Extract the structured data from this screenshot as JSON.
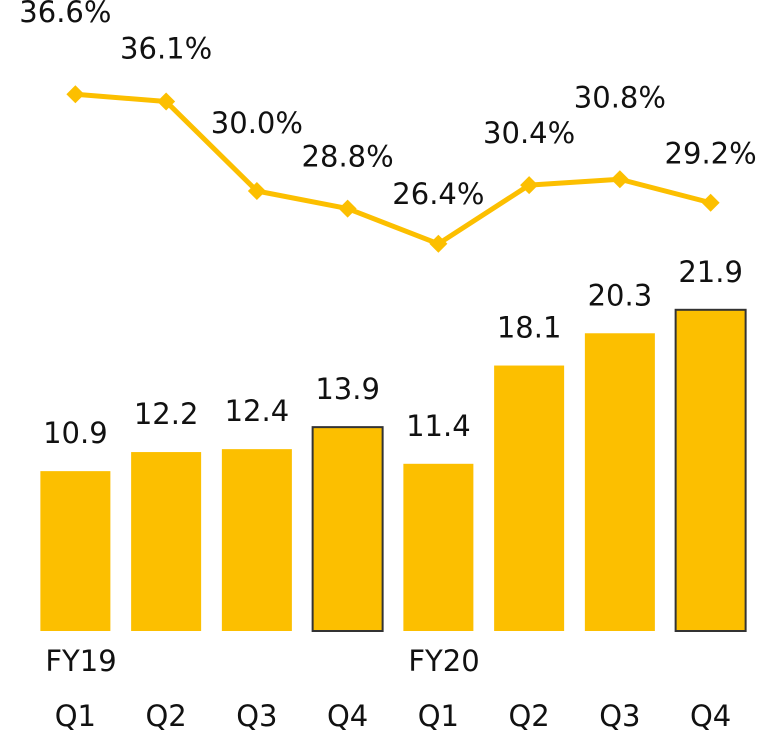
{
  "chart_data": {
    "type": "combo",
    "categories": [
      "Q1",
      "Q2",
      "Q3",
      "Q4",
      "Q1",
      "Q2",
      "Q3",
      "Q4"
    ],
    "group_labels": [
      "FY19",
      null,
      null,
      null,
      "FY20",
      null,
      null,
      null
    ],
    "ylim": [
      0,
      30
    ],
    "y2lim": [
      0,
      30
    ],
    "series": [
      {
        "type": "bar",
        "color": "#fcbf00",
        "edge_color": "#333333",
        "outlined": [
          false,
          false,
          false,
          true,
          false,
          false,
          false,
          true
        ],
        "values": [
          10.9,
          12.2,
          12.4,
          13.9,
          11.4,
          18.1,
          20.3,
          21.9
        ]
      },
      {
        "type": "line",
        "axis": "y2",
        "color": "#fcbf00",
        "values": [
          36.6,
          36.1,
          30.0,
          28.8,
          26.4,
          30.4,
          30.8,
          29.2
        ],
        "value_labels": [
          "36.6%",
          "36.1%",
          "30.0%",
          "28.8%",
          "26.4%",
          "30.4%",
          "30.8%",
          "29.2%"
        ]
      }
    ]
  }
}
